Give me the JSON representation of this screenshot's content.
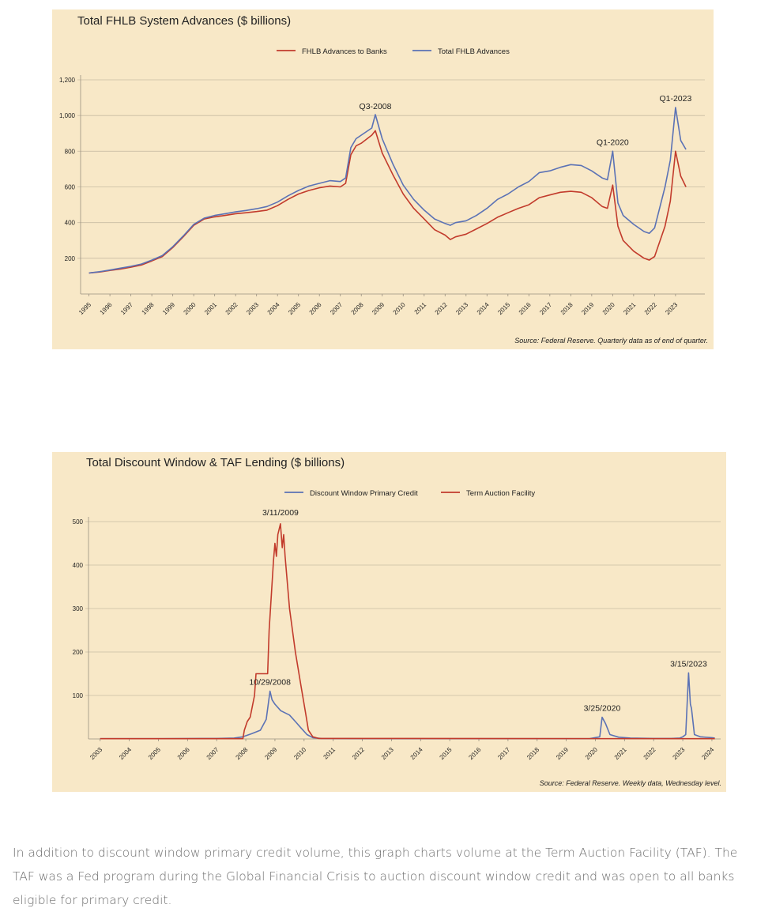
{
  "caption": "In addition to discount window primary credit volume, this graph charts volume at the Term Auction Facility (TAF). The TAF was a Fed program during the Global Financial Crisis to auction discount window credit and was open to all banks eligible for primary credit.",
  "colors": {
    "panel_bg": "#f8e8c7",
    "red": "#c23b2c",
    "blue": "#5b72b5",
    "grid": "#c8bca3",
    "text": "#222222"
  },
  "chart_data": [
    {
      "type": "line",
      "title": "Total FHLB System Advances ($ billions)",
      "source": "Source: Federal Reserve. Quarterly data as of end of quarter.",
      "xlabel": "",
      "ylabel": "",
      "ylim": [
        0,
        1200
      ],
      "yticks": [
        200,
        400,
        600,
        800,
        1000,
        1200
      ],
      "ytick_labels": [
        "200",
        "400",
        "600",
        "800",
        "1,000",
        "1,200"
      ],
      "xticks": [
        "1995",
        "1996",
        "1997",
        "1998",
        "1999",
        "2000",
        "2001",
        "2002",
        "2003",
        "2004",
        "2005",
        "2006",
        "2007",
        "2008",
        "2009",
        "2010",
        "2011",
        "2012",
        "2013",
        "2014",
        "2015",
        "2016",
        "2017",
        "2018",
        "2019",
        "2020",
        "2021",
        "2022",
        "2023"
      ],
      "grid": true,
      "legend_position": "top-center",
      "annotations": [
        {
          "text": "Q3-2008",
          "x": 2008.67,
          "y": 1000
        },
        {
          "text": "Q1-2020",
          "x": 2020.0,
          "y": 800
        },
        {
          "text": "Q1-2023",
          "x": 2023.0,
          "y": 1045
        }
      ],
      "series": [
        {
          "name": "FHLB Advances to Banks",
          "color": "#c23b2c",
          "points": [
            [
              1995.0,
              118
            ],
            [
              1995.5,
              123
            ],
            [
              1996.0,
              132
            ],
            [
              1996.5,
              140
            ],
            [
              1997.0,
              150
            ],
            [
              1997.5,
              162
            ],
            [
              1998.0,
              185
            ],
            [
              1998.5,
              210
            ],
            [
              1999.0,
              260
            ],
            [
              1999.5,
              320
            ],
            [
              2000.0,
              385
            ],
            [
              2000.5,
              420
            ],
            [
              2001.0,
              432
            ],
            [
              2001.5,
              440
            ],
            [
              2002.0,
              450
            ],
            [
              2002.5,
              455
            ],
            [
              2003.0,
              462
            ],
            [
              2003.5,
              470
            ],
            [
              2004.0,
              495
            ],
            [
              2004.5,
              530
            ],
            [
              2005.0,
              560
            ],
            [
              2005.5,
              580
            ],
            [
              2006.0,
              595
            ],
            [
              2006.5,
              605
            ],
            [
              2007.0,
              600
            ],
            [
              2007.25,
              620
            ],
            [
              2007.5,
              780
            ],
            [
              2007.75,
              830
            ],
            [
              2008.0,
              845
            ],
            [
              2008.5,
              890
            ],
            [
              2008.67,
              915
            ],
            [
              2009.0,
              790
            ],
            [
              2009.5,
              670
            ],
            [
              2010.0,
              560
            ],
            [
              2010.5,
              480
            ],
            [
              2011.0,
              420
            ],
            [
              2011.5,
              360
            ],
            [
              2012.0,
              330
            ],
            [
              2012.25,
              305
            ],
            [
              2012.5,
              320
            ],
            [
              2013.0,
              335
            ],
            [
              2013.5,
              365
            ],
            [
              2014.0,
              395
            ],
            [
              2014.5,
              430
            ],
            [
              2015.0,
              455
            ],
            [
              2015.5,
              480
            ],
            [
              2016.0,
              500
            ],
            [
              2016.5,
              540
            ],
            [
              2017.0,
              555
            ],
            [
              2017.5,
              570
            ],
            [
              2018.0,
              575
            ],
            [
              2018.5,
              570
            ],
            [
              2019.0,
              540
            ],
            [
              2019.5,
              490
            ],
            [
              2019.75,
              480
            ],
            [
              2020.0,
              610
            ],
            [
              2020.25,
              380
            ],
            [
              2020.5,
              300
            ],
            [
              2021.0,
              240
            ],
            [
              2021.5,
              200
            ],
            [
              2021.75,
              190
            ],
            [
              2022.0,
              210
            ],
            [
              2022.5,
              380
            ],
            [
              2022.75,
              520
            ],
            [
              2023.0,
              800
            ],
            [
              2023.25,
              660
            ],
            [
              2023.5,
              600
            ]
          ]
        },
        {
          "name": "Total FHLB Advances",
          "color": "#5b72b5",
          "points": [
            [
              1995.0,
              118
            ],
            [
              1995.5,
              125
            ],
            [
              1996.0,
              134
            ],
            [
              1996.5,
              145
            ],
            [
              1997.0,
              155
            ],
            [
              1997.5,
              168
            ],
            [
              1998.0,
              190
            ],
            [
              1998.5,
              215
            ],
            [
              1999.0,
              265
            ],
            [
              1999.5,
              325
            ],
            [
              2000.0,
              390
            ],
            [
              2000.5,
              425
            ],
            [
              2001.0,
              440
            ],
            [
              2001.5,
              450
            ],
            [
              2002.0,
              460
            ],
            [
              2002.5,
              468
            ],
            [
              2003.0,
              478
            ],
            [
              2003.5,
              490
            ],
            [
              2004.0,
              515
            ],
            [
              2004.5,
              550
            ],
            [
              2005.0,
              580
            ],
            [
              2005.5,
              605
            ],
            [
              2006.0,
              620
            ],
            [
              2006.5,
              635
            ],
            [
              2007.0,
              630
            ],
            [
              2007.25,
              650
            ],
            [
              2007.5,
              820
            ],
            [
              2007.75,
              870
            ],
            [
              2008.0,
              890
            ],
            [
              2008.5,
              930
            ],
            [
              2008.67,
              1005
            ],
            [
              2009.0,
              870
            ],
            [
              2009.5,
              730
            ],
            [
              2010.0,
              610
            ],
            [
              2010.5,
              530
            ],
            [
              2011.0,
              470
            ],
            [
              2011.5,
              420
            ],
            [
              2012.0,
              395
            ],
            [
              2012.25,
              385
            ],
            [
              2012.5,
              400
            ],
            [
              2013.0,
              410
            ],
            [
              2013.5,
              440
            ],
            [
              2014.0,
              480
            ],
            [
              2014.5,
              530
            ],
            [
              2015.0,
              560
            ],
            [
              2015.5,
              600
            ],
            [
              2016.0,
              630
            ],
            [
              2016.5,
              680
            ],
            [
              2017.0,
              690
            ],
            [
              2017.5,
              710
            ],
            [
              2018.0,
              725
            ],
            [
              2018.5,
              720
            ],
            [
              2019.0,
              690
            ],
            [
              2019.5,
              650
            ],
            [
              2019.75,
              640
            ],
            [
              2020.0,
              800
            ],
            [
              2020.25,
              510
            ],
            [
              2020.5,
              440
            ],
            [
              2021.0,
              390
            ],
            [
              2021.5,
              350
            ],
            [
              2021.75,
              340
            ],
            [
              2022.0,
              370
            ],
            [
              2022.5,
              600
            ],
            [
              2022.75,
              750
            ],
            [
              2023.0,
              1045
            ],
            [
              2023.25,
              860
            ],
            [
              2023.5,
              810
            ]
          ]
        }
      ]
    },
    {
      "type": "line",
      "title": "Total Discount Window & TAF Lending ($ billions)",
      "source": "Source: Federal Reserve. Weekly data, Wednesday level.",
      "xlabel": "",
      "ylabel": "",
      "ylim": [
        0,
        500
      ],
      "yticks": [
        100,
        200,
        300,
        400,
        500
      ],
      "ytick_labels": [
        "100",
        "200",
        "300",
        "400",
        "500"
      ],
      "xticks": [
        "2003",
        "2004",
        "2005",
        "2006",
        "2007",
        "2008",
        "2009",
        "2010",
        "2011",
        "2012",
        "2013",
        "2014",
        "2015",
        "2016",
        "2017",
        "2018",
        "2019",
        "2020",
        "2021",
        "2022",
        "2023",
        "2024"
      ],
      "grid": true,
      "legend_position": "top-center",
      "annotations": [
        {
          "text": "3/11/2009",
          "x": 2009.19,
          "y": 500
        },
        {
          "text": "10/29/2008",
          "x": 2008.83,
          "y": 110
        },
        {
          "text": "3/25/2020",
          "x": 2020.23,
          "y": 50
        },
        {
          "text": "3/15/2023",
          "x": 2023.2,
          "y": 152
        }
      ],
      "series": [
        {
          "name": "Discount Window Primary Credit",
          "color": "#5b72b5",
          "points": [
            [
              2003.0,
              0.5
            ],
            [
              2005.0,
              0.5
            ],
            [
              2007.0,
              1
            ],
            [
              2007.6,
              2
            ],
            [
              2007.9,
              5
            ],
            [
              2008.2,
              12
            ],
            [
              2008.5,
              20
            ],
            [
              2008.7,
              45
            ],
            [
              2008.83,
              110
            ],
            [
              2008.9,
              90
            ],
            [
              2009.0,
              80
            ],
            [
              2009.2,
              65
            ],
            [
              2009.5,
              55
            ],
            [
              2009.7,
              40
            ],
            [
              2009.9,
              25
            ],
            [
              2010.1,
              10
            ],
            [
              2010.3,
              3
            ],
            [
              2010.6,
              1
            ],
            [
              2012.0,
              0.5
            ],
            [
              2019.8,
              0.5
            ],
            [
              2020.15,
              5
            ],
            [
              2020.23,
              50
            ],
            [
              2020.35,
              35
            ],
            [
              2020.5,
              10
            ],
            [
              2020.8,
              4
            ],
            [
              2021.2,
              2
            ],
            [
              2022.0,
              1
            ],
            [
              2022.6,
              1
            ],
            [
              2022.9,
              2
            ],
            [
              2023.0,
              5
            ],
            [
              2023.1,
              10
            ],
            [
              2023.2,
              152
            ],
            [
              2023.26,
              80
            ],
            [
              2023.3,
              70
            ],
            [
              2023.4,
              10
            ],
            [
              2023.6,
              5
            ],
            [
              2024.0,
              3
            ],
            [
              2024.1,
              2
            ]
          ]
        },
        {
          "name": "Term Auction Facility",
          "color": "#c23b2c",
          "points": [
            [
              2003.0,
              0.5
            ],
            [
              2007.9,
              0.5
            ],
            [
              2007.95,
              20
            ],
            [
              2008.05,
              40
            ],
            [
              2008.15,
              50
            ],
            [
              2008.3,
              100
            ],
            [
              2008.35,
              150
            ],
            [
              2008.75,
              150
            ],
            [
              2008.8,
              250
            ],
            [
              2008.95,
              410
            ],
            [
              2009.0,
              450
            ],
            [
              2009.05,
              420
            ],
            [
              2009.1,
              470
            ],
            [
              2009.19,
              495
            ],
            [
              2009.25,
              440
            ],
            [
              2009.3,
              470
            ],
            [
              2009.35,
              420
            ],
            [
              2009.5,
              300
            ],
            [
              2009.7,
              200
            ],
            [
              2009.9,
              120
            ],
            [
              2010.05,
              60
            ],
            [
              2010.15,
              20
            ],
            [
              2010.3,
              5
            ],
            [
              2010.5,
              1
            ],
            [
              2024.1,
              0.5
            ]
          ]
        }
      ]
    }
  ]
}
